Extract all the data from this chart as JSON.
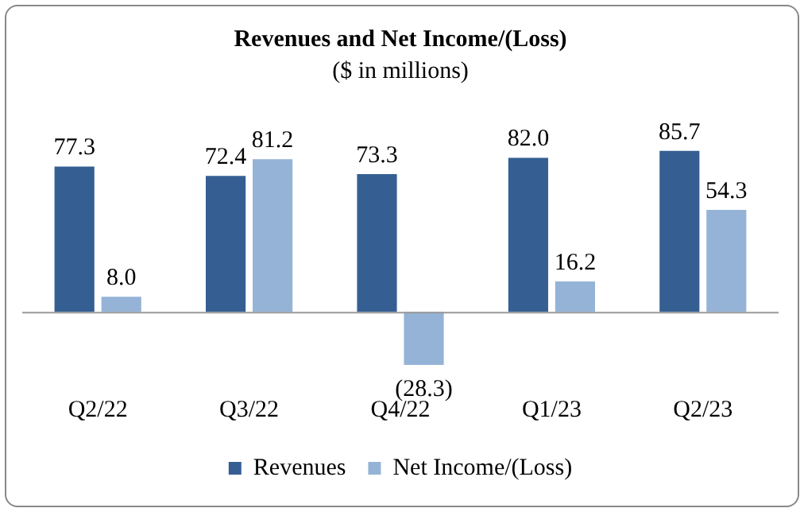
{
  "chart_data": {
    "type": "bar",
    "title": "Revenues and Net Income/(Loss)",
    "subtitle": "($ in millions)",
    "categories": [
      "Q2/22",
      "Q3/22",
      "Q4/22",
      "Q1/23",
      "Q2/23"
    ],
    "series": [
      {
        "name": "Revenues",
        "color": "#355f93",
        "values": [
          77.3,
          72.4,
          73.3,
          82.0,
          85.7
        ],
        "value_labels": [
          "77.3",
          "72.4",
          "73.3",
          "82.0",
          "85.7"
        ]
      },
      {
        "name": "Net Income/(Loss)",
        "color": "#95b3d7",
        "values": [
          8.0,
          81.2,
          -28.3,
          16.2,
          54.3
        ],
        "value_labels": [
          "8.0",
          "81.2",
          "(28.3)",
          "16.2",
          "54.3"
        ]
      }
    ],
    "legend": "bottom",
    "grid": false
  }
}
